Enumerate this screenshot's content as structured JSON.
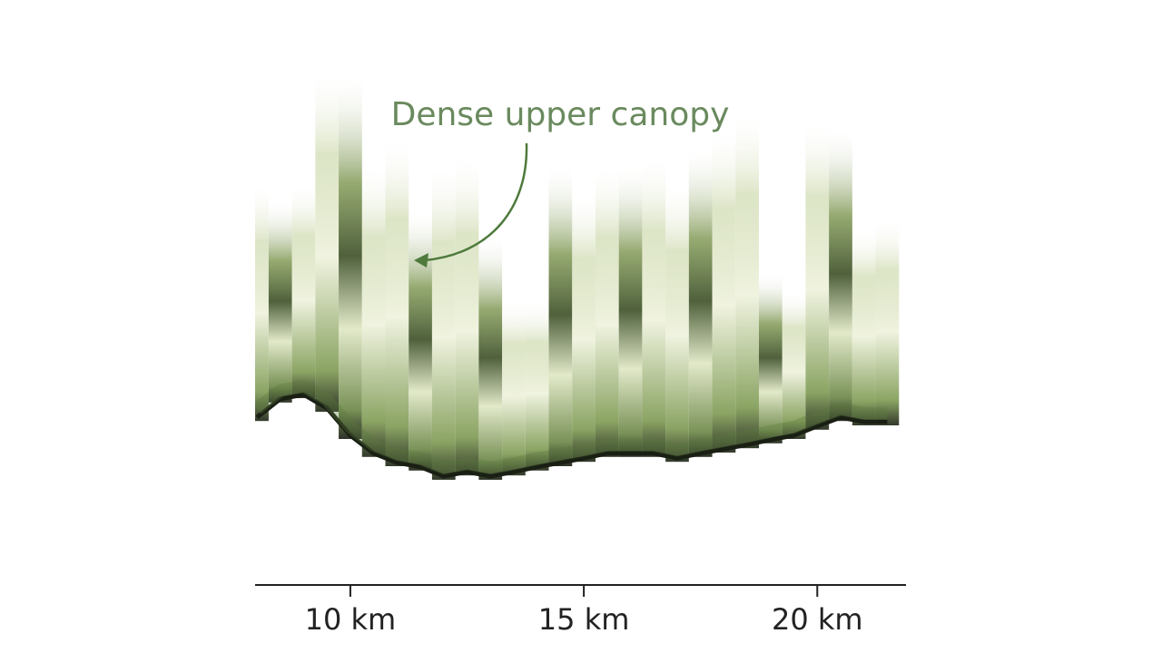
{
  "chart_data": {
    "type": "canopy-profile",
    "annotation": "Dense upper canopy",
    "x": [
      8,
      8.5,
      9,
      9.5,
      10,
      10.5,
      11,
      11.5,
      12,
      12.5,
      13,
      13.5,
      14,
      14.5,
      15,
      15.5,
      16,
      16.5,
      17,
      17.5,
      18,
      18.5,
      19,
      19.5,
      20,
      20.5,
      21,
      21.5
    ],
    "canopy_top": [
      74.2,
      70.8,
      74.2,
      95,
      94.2,
      77.5,
      82.5,
      69.2,
      77.5,
      79.2,
      64.2,
      52.5,
      52.5,
      77.5,
      72.5,
      77.5,
      77.5,
      79.2,
      74.2,
      80.8,
      84.2,
      87.5,
      57.5,
      54.2,
      85.8,
      84.2,
      65.8,
      67.5
    ],
    "ground": [
      30.8,
      34.2,
      35,
      32.5,
      27.5,
      24.2,
      22.5,
      21.7,
      20,
      20.8,
      20,
      20.8,
      21.7,
      22.5,
      23.3,
      24.2,
      24.2,
      24.2,
      23.3,
      24.2,
      25,
      25.8,
      26.7,
      27.5,
      29.2,
      30.8,
      30,
      30
    ],
    "color": "#5c7a3c",
    "xlim": [
      7.96,
      21.9
    ],
    "ylim": [
      0,
      100
    ],
    "xticks": [
      {
        "value": 10,
        "label": "10 km"
      },
      {
        "value": 15,
        "label": "15 km"
      },
      {
        "value": 20,
        "label": "20 km"
      }
    ]
  }
}
